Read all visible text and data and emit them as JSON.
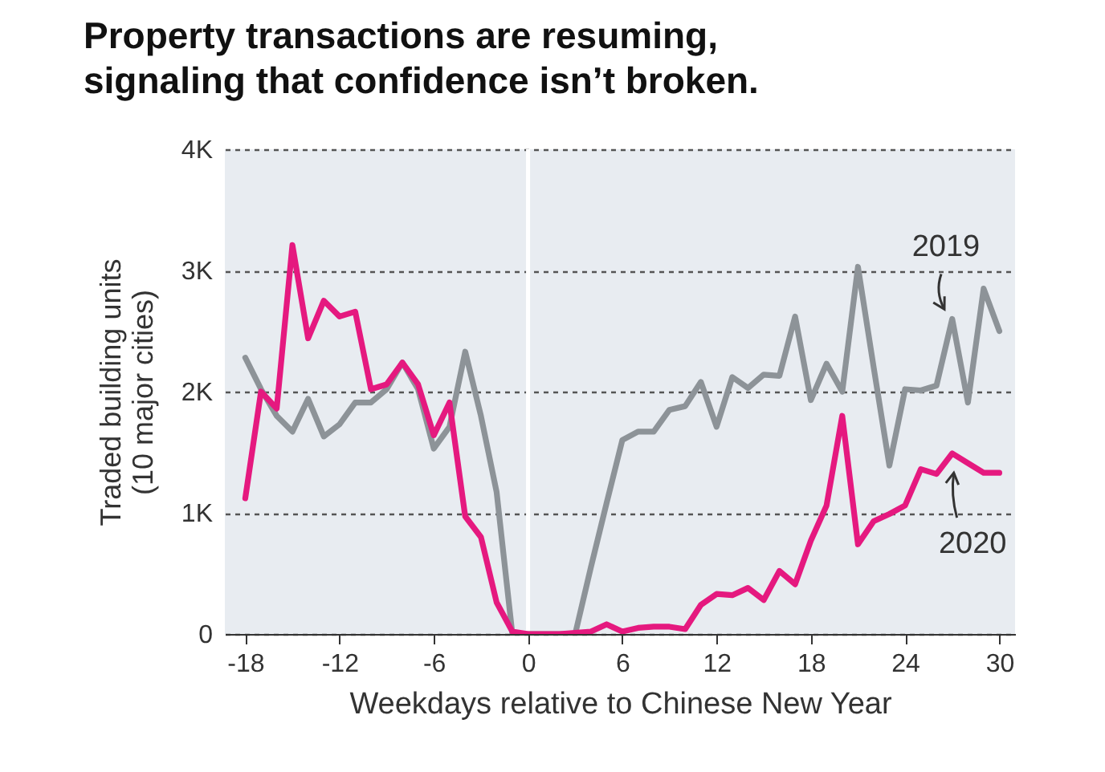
{
  "chart_data": {
    "type": "line",
    "title": "Property transactions are resuming, signaling that confidence isn’t broken.",
    "xlabel": "Weekdays relative to Chinese New Year",
    "ylabel": "Traded building units\n(10 major cities)",
    "x": [
      -18,
      -17,
      -16,
      -15,
      -14,
      -13,
      -12,
      -11,
      -10,
      -9,
      -8,
      -7,
      -6,
      -5,
      -4,
      -3,
      -2,
      -1,
      0,
      1,
      2,
      3,
      4,
      5,
      6,
      7,
      8,
      9,
      10,
      11,
      12,
      13,
      14,
      15,
      16,
      17,
      18,
      19,
      20,
      21,
      22,
      23,
      24,
      25,
      26,
      27,
      28,
      29,
      30
    ],
    "series": [
      {
        "name": "2019",
        "color": "#8d9398",
        "values": [
          2280,
          2020,
          1800,
          1670,
          1940,
          1630,
          1730,
          1910,
          1910,
          2020,
          2240,
          2020,
          1530,
          1710,
          2330,
          1800,
          1170,
          0,
          0,
          0,
          0,
          0,
          550,
          1080,
          1600,
          1670,
          1670,
          1850,
          1880,
          2080,
          1710,
          2120,
          2030,
          2140,
          2130,
          2620,
          1930,
          2230,
          2000,
          3030,
          2200,
          1390,
          2020,
          2010,
          2050,
          2600,
          1910,
          2850,
          2500
        ]
      },
      {
        "name": "2020",
        "color": "#e5197f",
        "values": [
          1120,
          2000,
          1860,
          3210,
          2440,
          2750,
          2620,
          2660,
          2020,
          2060,
          2240,
          2060,
          1640,
          1910,
          970,
          800,
          260,
          20,
          0,
          0,
          0,
          10,
          20,
          80,
          20,
          50,
          60,
          60,
          40,
          240,
          330,
          320,
          380,
          280,
          520,
          410,
          770,
          1060,
          1800,
          740,
          930,
          990,
          1060,
          1360,
          1320,
          1490,
          1410,
          1330,
          1330
        ]
      }
    ],
    "xlim": [
      -19.3,
      31
    ],
    "xticks": [
      -18,
      -12,
      -6,
      0,
      6,
      12,
      18,
      24,
      30
    ],
    "ylim": [
      0,
      4000
    ],
    "yticks": [
      0,
      {
        "value": 1000,
        "label": "1K"
      },
      {
        "value": 2000,
        "label": "2K"
      },
      {
        "value": 3000,
        "label": "3K"
      },
      {
        "value": 4000,
        "label": "4K"
      }
    ],
    "grid": "y",
    "ref_lines": [
      {
        "axis": "x",
        "value": 0,
        "color": "#ffffff"
      }
    ]
  }
}
